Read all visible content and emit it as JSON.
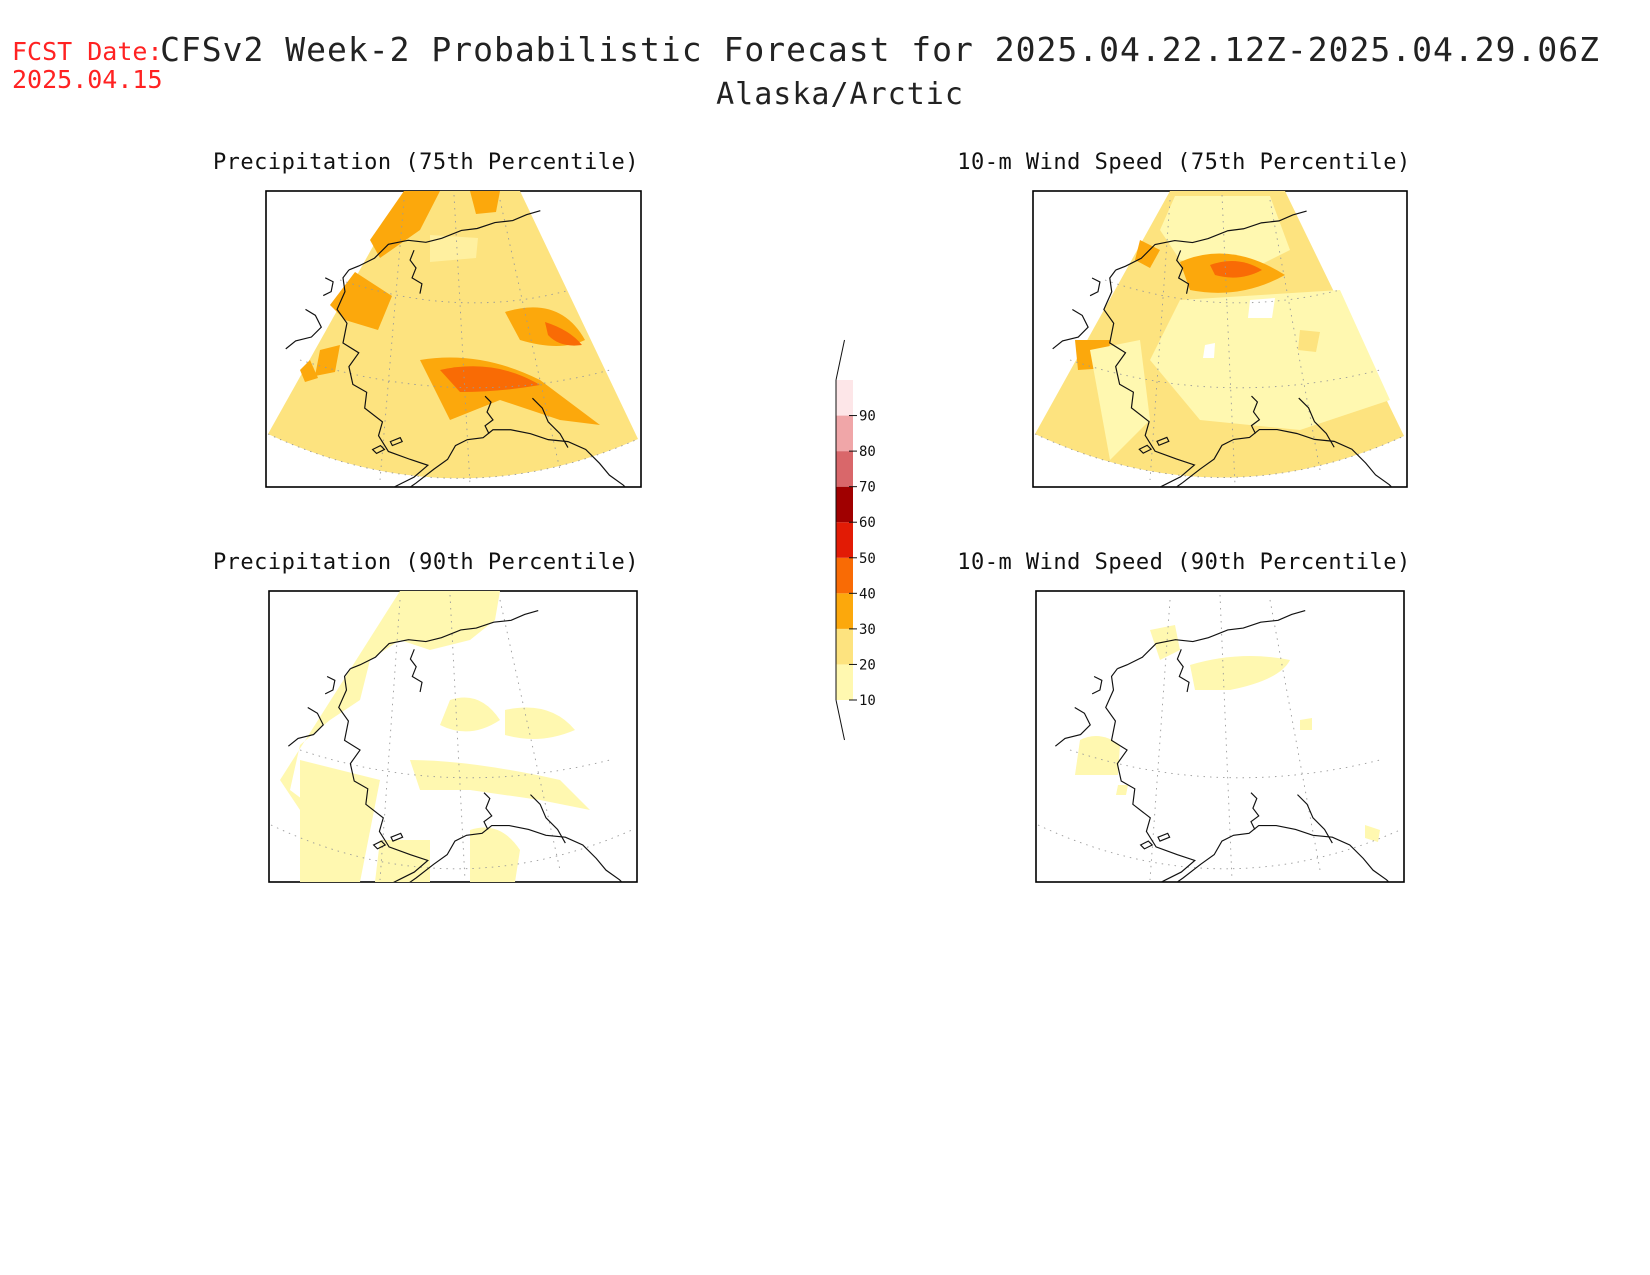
{
  "header": {
    "fcst_label": "FCST Date:",
    "fcst_date": "2025.04.15",
    "title": "CFSv2 Week-2 Probabilistic Forecast for 2025.04.22.12Z-2025.04.29.06Z",
    "region": "Alaska/Arctic"
  },
  "panels": [
    {
      "title": "Precipitation (75th Percentile)"
    },
    {
      "title": "10-m Wind Speed (75th Percentile)"
    },
    {
      "title": "Precipitation (90th Percentile)"
    },
    {
      "title": "10-m Wind Speed (90th Percentile)"
    }
  ],
  "colorbar": {
    "levels": [
      "10",
      "20",
      "30",
      "40",
      "50",
      "60",
      "70",
      "80",
      "90"
    ],
    "colors": {
      "c10_20": "#fff8b0",
      "c20_30": "#fde37f",
      "c30_40": "#fca80c",
      "c40_50": "#f96b05",
      "c50_60": "#e21b05",
      "c60_70": "#a00000",
      "c70_80": "#d9676a",
      "c80_90": "#f0a6a8",
      "c90_100": "#fde6e8"
    }
  },
  "colors": {
    "fcst_date": "#ff2222"
  }
}
